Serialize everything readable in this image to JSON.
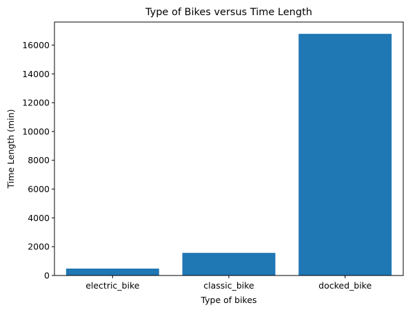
{
  "chart_data": {
    "type": "bar",
    "title": "Type of Bikes versus Time Length",
    "xlabel": "Type of bikes",
    "ylabel": "Time Length (min)",
    "categories": [
      "electric_bike",
      "classic_bike",
      "docked_bike"
    ],
    "values": [
      480,
      1570,
      16780
    ],
    "ylim": [
      0,
      17600
    ],
    "yticks": [
      0,
      2000,
      4000,
      6000,
      8000,
      10000,
      12000,
      14000,
      16000
    ],
    "grid": false,
    "legend": "none",
    "bar_color": "#1f77b4"
  }
}
